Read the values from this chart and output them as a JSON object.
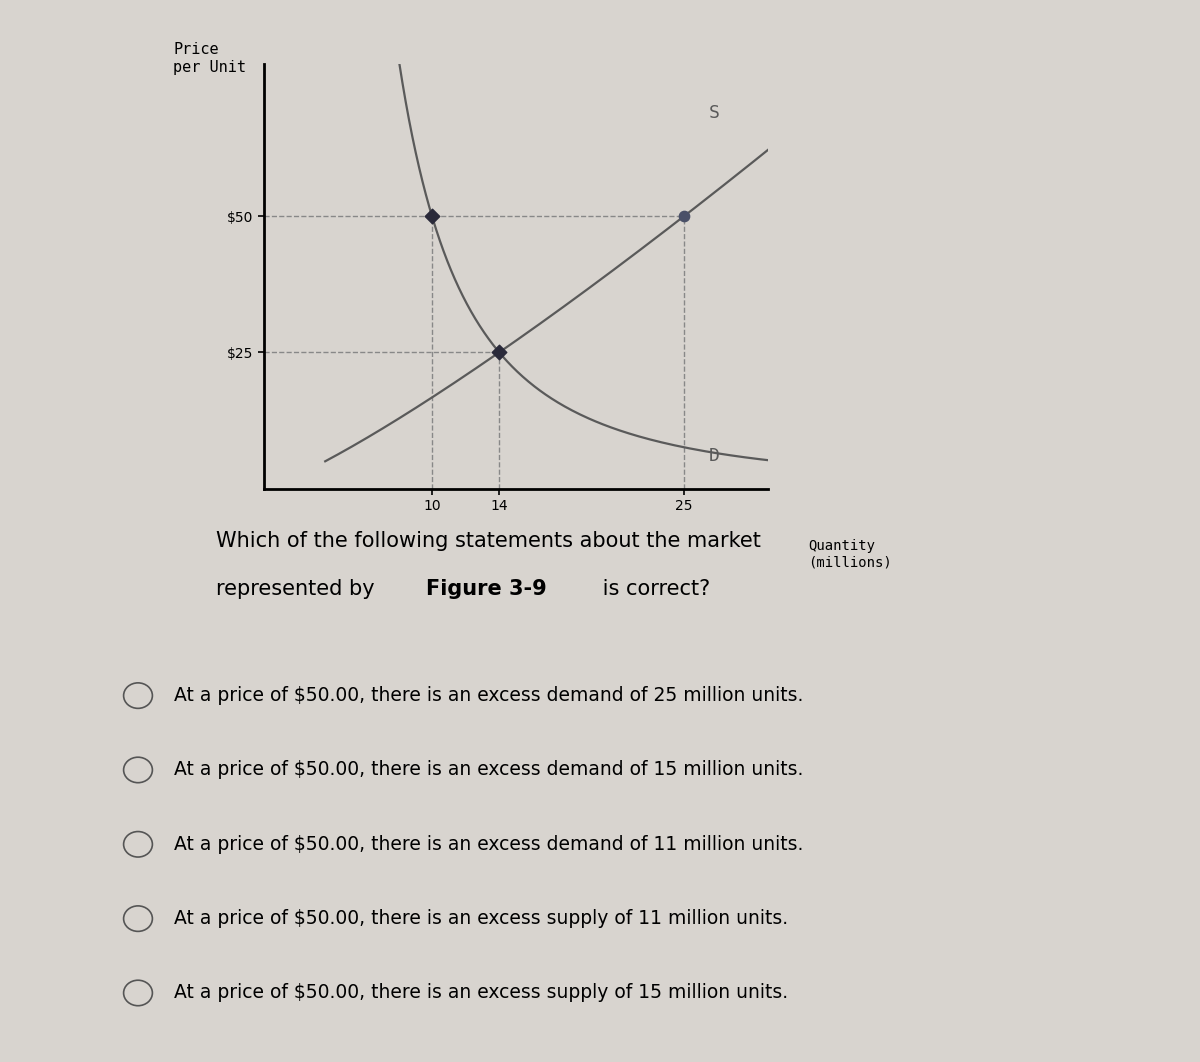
{
  "background_color": "#d8d4cf",
  "graph_bg_color": "#d8d4cf",
  "ylabel": "Price\nper Unit",
  "xlabel": "Quantity\n(millions)",
  "yticks": [
    25,
    50
  ],
  "ytick_labels": [
    "$25",
    "$50"
  ],
  "xticks": [
    10,
    14,
    25
  ],
  "xlim": [
    0,
    30
  ],
  "ylim": [
    0,
    78
  ],
  "supply_label": "S",
  "demand_label": "D",
  "curve_color": "#5a5a5a",
  "dashed_color": "#888888",
  "dot_color_demand": "#2a2a3a",
  "dot_color_supply": "#4a5068",
  "options": [
    "At a price of $50.00, there is an excess demand of 25 million units.",
    "At a price of $50.00, there is an excess demand of 15 million units.",
    "At a price of $50.00, there is an excess demand of 11 million units.",
    "At a price of $50.00, there is an excess supply of 11 million units.",
    "At a price of $50.00, there is an excess supply of 15 million units."
  ],
  "figsize": [
    12.0,
    10.62
  ],
  "dpi": 100
}
